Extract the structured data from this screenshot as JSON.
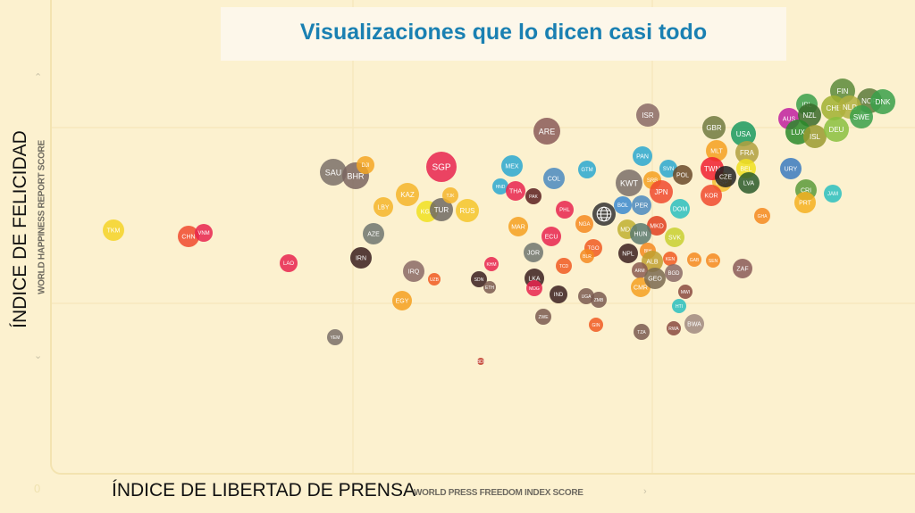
{
  "slide_title": "Visualizaciones que lo dicen casi todo",
  "y_axis_label": "ÍNDICE DE FELICIDAD",
  "x_axis_label": "ÍNDICE DE LIBERTAD DE PRENSA",
  "axis_zero": "0",
  "icons": {
    "up": "chevron-up-icon",
    "down": "chevron-down-icon",
    "right": "chevron-right-icon",
    "world": "globe-icon"
  },
  "chart_data": {
    "type": "scatter",
    "subtype": "bubble",
    "xlabel": "WORLD PRESS FREEDOM INDEX SCORE",
    "ylabel": "WORLD HAPPINESS REPORT SCORE",
    "xlim": [
      0,
      100
    ],
    "ylim": [
      0,
      10
    ],
    "grid": true,
    "points": [
      {
        "label": "TKM",
        "x": 6.9,
        "y": 5.44,
        "size": 12,
        "color": "#f5d327"
      },
      {
        "label": "CHN",
        "x": 15.3,
        "y": 5.3,
        "size": 12,
        "color": "#f04a2e"
      },
      {
        "label": "VNM",
        "x": 17.0,
        "y": 5.38,
        "size": 10,
        "color": "#e8254f"
      },
      {
        "label": "LAO",
        "x": 26.5,
        "y": 4.7,
        "size": 10,
        "color": "#e8254f"
      },
      {
        "label": "YEM",
        "x": 31.7,
        "y": 3.04,
        "size": 9,
        "color": "#7a7068"
      },
      {
        "label": "SAU",
        "x": 31.5,
        "y": 6.74,
        "size": 15,
        "color": "#7a7068"
      },
      {
        "label": "BHR",
        "x": 34.0,
        "y": 6.66,
        "size": 15,
        "color": "#7a6560"
      },
      {
        "label": "DJI",
        "x": 35.1,
        "y": 6.9,
        "size": 10,
        "color": "#f5a623"
      },
      {
        "label": "SGP",
        "x": 43.6,
        "y": 6.86,
        "size": 17,
        "color": "#e8254f"
      },
      {
        "label": "KAZ",
        "x": 39.8,
        "y": 6.24,
        "size": 13,
        "color": "#f5b52a"
      },
      {
        "label": "LBY",
        "x": 37.1,
        "y": 5.96,
        "size": 11,
        "color": "#f5b52a"
      },
      {
        "label": "KGZ",
        "x": 42.0,
        "y": 5.86,
        "size": 12,
        "color": "#f0e020"
      },
      {
        "label": "TUR",
        "x": 43.6,
        "y": 5.9,
        "size": 13,
        "color": "#6f6a63"
      },
      {
        "label": "TJK",
        "x": 44.6,
        "y": 6.22,
        "size": 9,
        "color": "#f5b52a"
      },
      {
        "label": "RUS",
        "x": 46.5,
        "y": 5.88,
        "size": 13,
        "color": "#f5c52a"
      },
      {
        "label": "AZE",
        "x": 36.0,
        "y": 5.36,
        "size": 12,
        "color": "#6f7670"
      },
      {
        "label": "IRN",
        "x": 34.6,
        "y": 4.82,
        "size": 12,
        "color": "#3a1e1e"
      },
      {
        "label": "IRQ",
        "x": 40.5,
        "y": 4.52,
        "size": 12,
        "color": "#8a6a66"
      },
      {
        "label": "UZB",
        "x": 42.8,
        "y": 4.34,
        "size": 7,
        "color": "#f05a22"
      },
      {
        "label": "EGY",
        "x": 39.2,
        "y": 3.86,
        "size": 11,
        "color": "#f5a020"
      },
      {
        "label": "SDN",
        "x": 47.8,
        "y": 4.34,
        "size": 9,
        "color": "#3a1e1e"
      },
      {
        "label": "ETH",
        "x": 49.0,
        "y": 4.16,
        "size": 7,
        "color": "#7a5a50"
      },
      {
        "label": "KHM",
        "x": 49.2,
        "y": 4.68,
        "size": 8,
        "color": "#e8254f"
      },
      {
        "label": "HND",
        "x": 50.2,
        "y": 6.42,
        "size": 9,
        "color": "#2aa8d0"
      },
      {
        "label": "MEX",
        "x": 51.5,
        "y": 6.88,
        "size": 12,
        "color": "#2aa8d0"
      },
      {
        "label": "THA",
        "x": 51.9,
        "y": 6.32,
        "size": 11,
        "color": "#e8254f"
      },
      {
        "label": "PAK",
        "x": 53.9,
        "y": 6.2,
        "size": 9,
        "color": "#5a1e1e"
      },
      {
        "label": "ARE",
        "x": 55.4,
        "y": 7.66,
        "size": 15,
        "color": "#8a5a58"
      },
      {
        "label": "COL",
        "x": 56.2,
        "y": 6.6,
        "size": 12,
        "color": "#4a8ac0"
      },
      {
        "label": "GTM",
        "x": 59.9,
        "y": 6.8,
        "size": 10,
        "color": "#2aa8d0"
      },
      {
        "label": "PHL",
        "x": 57.4,
        "y": 5.9,
        "size": 10,
        "color": "#e8254f"
      },
      {
        "label": "WORLD",
        "x": 61.8,
        "y": 5.8,
        "size": 13,
        "color": "#333333",
        "icon": "globe"
      },
      {
        "label": "NGA",
        "x": 59.6,
        "y": 5.58,
        "size": 10,
        "color": "#f58a20"
      },
      {
        "label": "MAR",
        "x": 52.2,
        "y": 5.52,
        "size": 11,
        "color": "#f5a020"
      },
      {
        "label": "ECU",
        "x": 55.9,
        "y": 5.3,
        "size": 11,
        "color": "#e8254f"
      },
      {
        "label": "JOR",
        "x": 53.9,
        "y": 4.94,
        "size": 11,
        "color": "#6f7670"
      },
      {
        "label": "TCD",
        "x": 57.3,
        "y": 4.64,
        "size": 9,
        "color": "#f05a22"
      },
      {
        "label": "TGO",
        "x": 60.6,
        "y": 5.04,
        "size": 10,
        "color": "#f05a22"
      },
      {
        "label": "BLR",
        "x": 59.9,
        "y": 4.86,
        "size": 8,
        "color": "#f58a20"
      },
      {
        "label": "LKA",
        "x": 54.0,
        "y": 4.36,
        "size": 11,
        "color": "#3a1e1e"
      },
      {
        "label": "MDG",
        "x": 54.0,
        "y": 4.14,
        "size": 9,
        "color": "#e8254f"
      },
      {
        "label": "IND",
        "x": 56.7,
        "y": 4.0,
        "size": 10,
        "color": "#3a1e1e"
      },
      {
        "label": "UGA",
        "x": 59.8,
        "y": 3.96,
        "size": 9,
        "color": "#7a5a50"
      },
      {
        "label": "ZMB",
        "x": 61.2,
        "y": 3.88,
        "size": 9,
        "color": "#7a5a50"
      },
      {
        "label": "ZWE",
        "x": 55.0,
        "y": 3.5,
        "size": 9,
        "color": "#7a5a50"
      },
      {
        "label": "GIN",
        "x": 60.9,
        "y": 3.32,
        "size": 8,
        "color": "#f05a22"
      },
      {
        "label": "TZA",
        "x": 66.0,
        "y": 3.16,
        "size": 9,
        "color": "#7a5a50"
      },
      {
        "label": "BDI",
        "x": 48.0,
        "y": 2.5,
        "size": 4,
        "color": "#c0392b"
      },
      {
        "label": "ISR",
        "x": 66.7,
        "y": 8.02,
        "size": 13,
        "color": "#8a6a66"
      },
      {
        "label": "PAN",
        "x": 66.1,
        "y": 7.1,
        "size": 11,
        "color": "#2aa8d0"
      },
      {
        "label": "KWT",
        "x": 64.6,
        "y": 6.5,
        "size": 15,
        "color": "#7a6f68"
      },
      {
        "label": "SRB",
        "x": 67.2,
        "y": 6.56,
        "size": 10,
        "color": "#f5a020"
      },
      {
        "label": "JPN",
        "x": 68.2,
        "y": 6.3,
        "size": 13,
        "color": "#f04a2e"
      },
      {
        "label": "BOL",
        "x": 63.9,
        "y": 6.0,
        "size": 10,
        "color": "#3a8ad0"
      },
      {
        "label": "PER",
        "x": 66.0,
        "y": 6.0,
        "size": 11,
        "color": "#4a8ac0"
      },
      {
        "label": "DOM",
        "x": 70.3,
        "y": 5.92,
        "size": 11,
        "color": "#2ac0c0"
      },
      {
        "label": "MDA",
        "x": 64.4,
        "y": 5.46,
        "size": 11,
        "color": "#c0b030"
      },
      {
        "label": "MKD",
        "x": 67.7,
        "y": 5.54,
        "size": 11,
        "color": "#e0401e"
      },
      {
        "label": "HUN",
        "x": 65.9,
        "y": 5.36,
        "size": 12,
        "color": "#5a7a70"
      },
      {
        "label": "SVK",
        "x": 69.7,
        "y": 5.28,
        "size": 11,
        "color": "#c8d030"
      },
      {
        "label": "NPL",
        "x": 64.5,
        "y": 4.92,
        "size": 11,
        "color": "#3a1e1e"
      },
      {
        "label": "BIH",
        "x": 66.7,
        "y": 4.98,
        "size": 9,
        "color": "#f58a20"
      },
      {
        "label": "ALB",
        "x": 67.2,
        "y": 4.74,
        "size": 12,
        "color": "#c0a030"
      },
      {
        "label": "ARM",
        "x": 65.8,
        "y": 4.54,
        "size": 9,
        "color": "#8a5a50"
      },
      {
        "label": "CMR",
        "x": 65.9,
        "y": 4.16,
        "size": 11,
        "color": "#f5a020"
      },
      {
        "label": "GEO",
        "x": 67.5,
        "y": 4.36,
        "size": 12,
        "color": "#7a6a50"
      },
      {
        "label": "KEN",
        "x": 69.2,
        "y": 4.8,
        "size": 8,
        "color": "#f05a22"
      },
      {
        "label": "GAB",
        "x": 71.9,
        "y": 4.78,
        "size": 8,
        "color": "#f58a20"
      },
      {
        "label": "SEN",
        "x": 74.0,
        "y": 4.76,
        "size": 8,
        "color": "#f58a20"
      },
      {
        "label": "BGD",
        "x": 69.6,
        "y": 4.48,
        "size": 10,
        "color": "#8a6a66"
      },
      {
        "label": "MWI",
        "x": 70.9,
        "y": 4.06,
        "size": 8,
        "color": "#8a4a40"
      },
      {
        "label": "HTI",
        "x": 70.2,
        "y": 3.74,
        "size": 8,
        "color": "#2ac0c0"
      },
      {
        "label": "RWA",
        "x": 69.6,
        "y": 3.24,
        "size": 8,
        "color": "#8a4a40"
      },
      {
        "label": "BWA",
        "x": 71.9,
        "y": 3.34,
        "size": 11,
        "color": "#a08a80"
      },
      {
        "label": "ZAF",
        "x": 77.3,
        "y": 4.58,
        "size": 11,
        "color": "#8a5a58"
      },
      {
        "label": "GHA",
        "x": 79.5,
        "y": 5.76,
        "size": 9,
        "color": "#f58a20"
      },
      {
        "label": "SVN",
        "x": 69.0,
        "y": 6.82,
        "size": 10,
        "color": "#2aa8d0"
      },
      {
        "label": "POL",
        "x": 70.6,
        "y": 6.68,
        "size": 11,
        "color": "#6a4a2a"
      },
      {
        "label": "GBR",
        "x": 74.1,
        "y": 7.74,
        "size": 13,
        "color": "#707a40"
      },
      {
        "label": "USA",
        "x": 77.4,
        "y": 7.6,
        "size": 14,
        "color": "#1a9a60"
      },
      {
        "label": "MLT",
        "x": 74.4,
        "y": 7.22,
        "size": 12,
        "color": "#f5a020"
      },
      {
        "label": "FRA",
        "x": 77.8,
        "y": 7.18,
        "size": 13,
        "color": "#b0a040"
      },
      {
        "label": "BEL",
        "x": 77.7,
        "y": 6.82,
        "size": 11,
        "color": "#f0e020"
      },
      {
        "label": "ESP",
        "x": 75.0,
        "y": 6.52,
        "size": 11,
        "color": "#f5c030"
      },
      {
        "label": "TWN",
        "x": 73.9,
        "y": 6.82,
        "size": 13,
        "color": "#f02030"
      },
      {
        "label": "CZE",
        "x": 75.4,
        "y": 6.64,
        "size": 12,
        "color": "#222222"
      },
      {
        "label": "KOR",
        "x": 73.8,
        "y": 6.22,
        "size": 12,
        "color": "#f04a2e"
      },
      {
        "label": "LVA",
        "x": 78.0,
        "y": 6.5,
        "size": 12,
        "color": "#2a5a2a"
      },
      {
        "label": "URY",
        "x": 82.7,
        "y": 6.82,
        "size": 12,
        "color": "#3a7ac0"
      },
      {
        "label": "CRI",
        "x": 84.4,
        "y": 6.34,
        "size": 12,
        "color": "#5a9a3a"
      },
      {
        "label": "PRT",
        "x": 84.3,
        "y": 6.06,
        "size": 12,
        "color": "#f5b020"
      },
      {
        "label": "JAM",
        "x": 87.4,
        "y": 6.26,
        "size": 10,
        "color": "#2ac0c0"
      },
      {
        "label": "FIN",
        "x": 88.5,
        "y": 8.56,
        "size": 14,
        "color": "#5a8a3a"
      },
      {
        "label": "NOR",
        "x": 91.5,
        "y": 8.34,
        "size": 14,
        "color": "#5a7a3a"
      },
      {
        "label": "DNK",
        "x": 93.0,
        "y": 8.32,
        "size": 14,
        "color": "#3aa04a"
      },
      {
        "label": "CHE",
        "x": 87.5,
        "y": 8.18,
        "size": 14,
        "color": "#a0b030"
      },
      {
        "label": "NLD",
        "x": 89.3,
        "y": 8.2,
        "size": 13,
        "color": "#b0b040"
      },
      {
        "label": "IRL",
        "x": 84.5,
        "y": 8.26,
        "size": 12,
        "color": "#3aa04a"
      },
      {
        "label": "AUS",
        "x": 82.5,
        "y": 7.94,
        "size": 12,
        "color": "#c020a0"
      },
      {
        "label": "NZL",
        "x": 84.8,
        "y": 8.02,
        "size": 13,
        "color": "#3a6a2a"
      },
      {
        "label": "SWE",
        "x": 90.6,
        "y": 7.98,
        "size": 13,
        "color": "#3aa04a"
      },
      {
        "label": "LUX",
        "x": 83.5,
        "y": 7.64,
        "size": 14,
        "color": "#2a8a2a"
      },
      {
        "label": "ISL",
        "x": 85.4,
        "y": 7.54,
        "size": 13,
        "color": "#9a9a30"
      },
      {
        "label": "DEU",
        "x": 87.8,
        "y": 7.7,
        "size": 14,
        "color": "#8ac040"
      }
    ]
  }
}
